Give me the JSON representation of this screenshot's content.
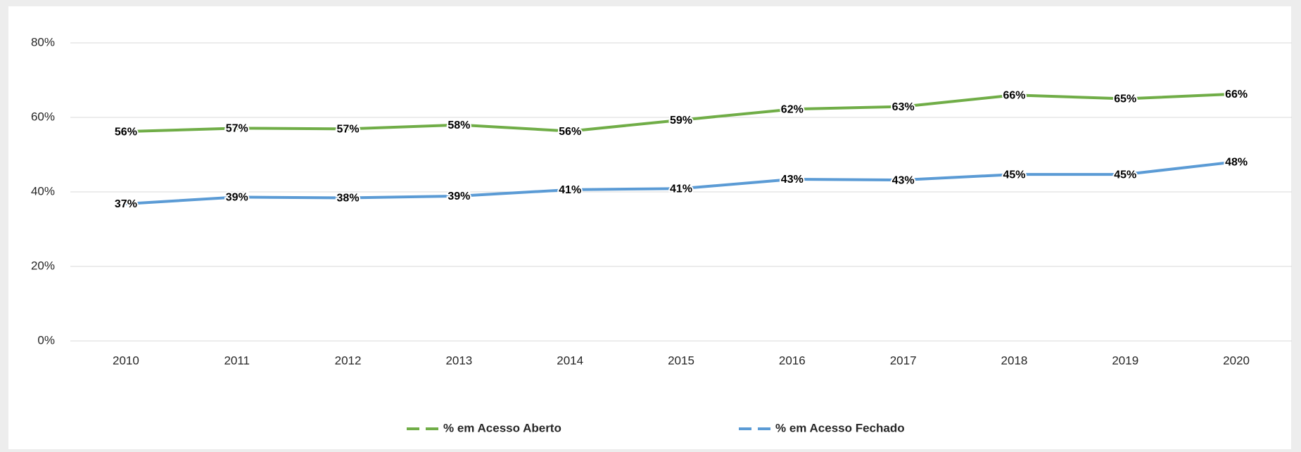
{
  "chart_data": {
    "type": "line",
    "categories": [
      "2010",
      "2011",
      "2012",
      "2013",
      "2014",
      "2015",
      "2016",
      "2017",
      "2018",
      "2019",
      "2020"
    ],
    "series": [
      {
        "name": "% em Acesso Aberto",
        "color": "#70ad47",
        "values": [
          56.2,
          57.1,
          56.9,
          58.0,
          56.3,
          59.3,
          62.2,
          62.9,
          66.0,
          65.0,
          66.3
        ],
        "value_labels": [
          "56%",
          "57%",
          "57%",
          "58%",
          "56%",
          "59%",
          "62%",
          "63%",
          "66%",
          "65%",
          "66%"
        ]
      },
      {
        "name": "% em Acesso Fechado",
        "color": "#5b9bd5",
        "values": [
          36.8,
          38.6,
          38.4,
          38.9,
          40.6,
          40.9,
          43.4,
          43.2,
          44.7,
          44.7,
          48.1
        ],
        "value_labels": [
          "37%",
          "39%",
          "38%",
          "39%",
          "41%",
          "41%",
          "43%",
          "43%",
          "45%",
          "45%",
          "48%"
        ]
      }
    ],
    "ylim": [
      0,
      80
    ],
    "yticks": [
      {
        "value": 0,
        "label": "0%"
      },
      {
        "value": 20,
        "label": "20%"
      },
      {
        "value": 40,
        "label": "40%"
      },
      {
        "value": 60,
        "label": "60%"
      },
      {
        "value": 80,
        "label": "80%"
      }
    ],
    "grid": true,
    "legend": "bottom"
  }
}
